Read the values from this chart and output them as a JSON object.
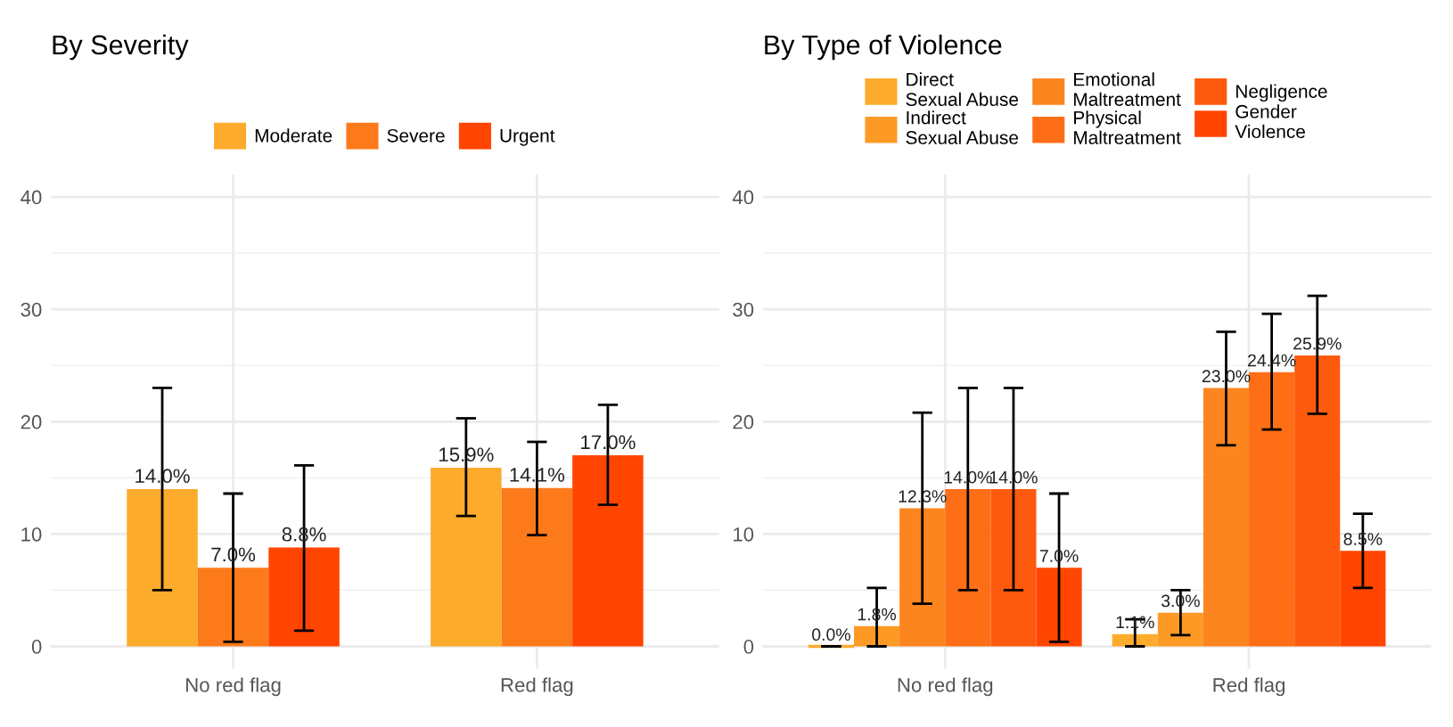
{
  "chart_data": [
    {
      "type": "bar",
      "title": "By Severity",
      "categories": [
        "No red flag",
        "Red flag"
      ],
      "ylim": [
        -2,
        42
      ],
      "yticks": [
        0,
        10,
        20,
        30,
        40
      ],
      "grid": true,
      "legend": "top",
      "series": [
        {
          "name": "Moderate",
          "color": "#fdab2d",
          "values": [
            14.0,
            15.9
          ],
          "errors": [
            [
              5.0,
              23.0
            ],
            [
              11.6,
              20.3
            ]
          ],
          "value_labels": [
            "14.0%",
            "15.9%"
          ]
        },
        {
          "name": "Severe",
          "color": "#fd7a1a",
          "values": [
            7.0,
            14.1
          ],
          "errors": [
            [
              0.4,
              13.6
            ],
            [
              9.9,
              18.2
            ]
          ],
          "value_labels": [
            "7.0%",
            "14.1%"
          ]
        },
        {
          "name": "Urgent",
          "color": "#ff4500",
          "values": [
            8.8,
            17.0
          ],
          "errors": [
            [
              1.4,
              16.1
            ],
            [
              12.6,
              21.5
            ]
          ],
          "value_labels": [
            "8.8%",
            "17.0%"
          ]
        }
      ]
    },
    {
      "type": "bar",
      "title": "By Type of Violence",
      "categories": [
        "No red flag",
        "Red flag"
      ],
      "ylim": [
        -2,
        42
      ],
      "yticks": [
        0,
        10,
        20,
        30,
        40
      ],
      "grid": true,
      "legend": "top",
      "series": [
        {
          "name": "Direct\nSexual Abuse",
          "color": "#fdab2d",
          "values": [
            0.0,
            1.1
          ],
          "errors": [
            [
              0.0,
              0.0
            ],
            [
              0.0,
              2.4
            ]
          ],
          "value_labels": [
            "0.0%",
            "1.1%"
          ]
        },
        {
          "name": "Indirect\nSexual Abuse",
          "color": "#fd9a26",
          "values": [
            1.8,
            3.0
          ],
          "errors": [
            [
              0.0,
              5.2
            ],
            [
              1.0,
              5.0
            ]
          ],
          "value_labels": [
            "1.8%",
            "3.0%"
          ]
        },
        {
          "name": "Emotional\nMaltreatment",
          "color": "#fd8520",
          "values": [
            12.3,
            23.0
          ],
          "errors": [
            [
              3.8,
              20.8
            ],
            [
              17.9,
              28.0
            ]
          ],
          "value_labels": [
            "12.3%",
            "23.0%"
          ]
        },
        {
          "name": "Physical\nMaltreatment",
          "color": "#fd6e17",
          "values": [
            14.0,
            24.4
          ],
          "errors": [
            [
              5.0,
              23.0
            ],
            [
              19.3,
              29.6
            ]
          ],
          "value_labels": [
            "14.0%",
            "24.4%"
          ]
        },
        {
          "name": "Negligence",
          "color": "#fe5a0d",
          "values": [
            14.0,
            25.9
          ],
          "errors": [
            [
              5.0,
              23.0
            ],
            [
              20.7,
              31.2
            ]
          ],
          "value_labels": [
            "14.0%",
            "25.9%"
          ]
        },
        {
          "name": "Gender\nViolence",
          "color": "#ff4500",
          "values": [
            7.0,
            8.5
          ],
          "errors": [
            [
              0.4,
              13.6
            ],
            [
              5.2,
              11.8
            ]
          ],
          "value_labels": [
            "7.0%",
            "8.5%"
          ]
        }
      ]
    }
  ]
}
